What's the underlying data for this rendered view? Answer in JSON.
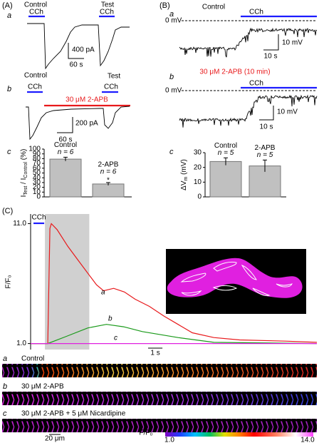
{
  "panels": {
    "A": {
      "label": "(A)",
      "a": {
        "label": "a",
        "control": "Control",
        "stim1": "CCh",
        "test": "Test",
        "stim2": "CCh",
        "scale_y": "400 pA",
        "scale_x": "60 s"
      },
      "b": {
        "label": "b",
        "control": "Control",
        "stim1": "CCh",
        "test": "Test",
        "stim2": "CCh",
        "drug": "30 μM 2-APB",
        "scale_y": "200 pA",
        "scale_x": "60 s"
      },
      "c": {
        "label": "c"
      }
    },
    "B": {
      "label": "(B)",
      "a": {
        "label": "a",
        "title": "Control",
        "stim": "CCh",
        "zero": "0 mV",
        "scale_y": "10 mV",
        "scale_x": "10 s"
      },
      "b": {
        "label": "b",
        "title": "30 μM 2-APB  (10 min)",
        "stim": "CCh",
        "zero": "0 mV",
        "scale_y": "10 mV",
        "scale_x": "10 s"
      },
      "c": {
        "label": "c"
      }
    },
    "C": {
      "label": "(C)",
      "strips": [
        {
          "label": "a",
          "text": "Control"
        },
        {
          "label": "b",
          "text": "30 μM 2-APB"
        },
        {
          "label": "c",
          "text": "30 μM 2-APB + 5 μM Nicardipine"
        }
      ],
      "scale": "20 μm",
      "colorbar": {
        "label": "F/F₀",
        "ticks": [
          {
            "value": 1,
            "label": "1.0"
          },
          {
            "value": 14,
            "label": "14.0"
          }
        ]
      }
    }
  },
  "chart_data": [
    {
      "type": "bar",
      "ylabel": [
        "I",
        "Test",
        " / I",
        "Control",
        " (%)"
      ],
      "categories": [
        "Control",
        "2-APB"
      ],
      "values": [
        79,
        27
      ],
      "errors": [
        4,
        3
      ],
      "n_labels": [
        "n = 6",
        "n = 6"
      ],
      "annotations": [
        null,
        "*"
      ],
      "color": "#c0c0c0",
      "ylim": [
        0,
        100
      ],
      "yticks": [
        0,
        10,
        20,
        30,
        40,
        50,
        60,
        70,
        80,
        90,
        100
      ]
    },
    {
      "type": "bar",
      "ylabel": [
        "ΔV",
        "m",
        "  (mV)"
      ],
      "categories": [
        "Control",
        "2-APB"
      ],
      "values": [
        24,
        21
      ],
      "errors": [
        2.5,
        4
      ],
      "n_labels": [
        "n = 5",
        "n = 5"
      ],
      "annotations": [
        null,
        null
      ],
      "color": "#c0c0c0",
      "ylim": [
        0,
        30
      ],
      "yticks": [
        0,
        10,
        20,
        30
      ]
    },
    {
      "type": "line",
      "ylabel": "F/F₀",
      "xlim": [
        -1,
        19
      ],
      "ylim": [
        0.5,
        11.8
      ],
      "yticks": [
        {
          "value": 1,
          "label": "1.0"
        },
        {
          "value": 11,
          "label": "11.0"
        }
      ],
      "stimulus": {
        "label": "CCh",
        "range": [
          -0.8,
          -0.05
        ]
      },
      "highlight": [
        0,
        3.1
      ],
      "scalebar": {
        "label": "1 s",
        "length": 1
      },
      "series": [
        {
          "name": "a",
          "color": "#e8191b",
          "x": [
            -1,
            0,
            0.2,
            0.35,
            0.45,
            0.85,
            1.6,
            2.35,
            3.1,
            3.6,
            4.1,
            4.8,
            5.55,
            6.3,
            7.3,
            8.3,
            9.3,
            10.3,
            11.8,
            13.6,
            16.8,
            19
          ],
          "values": [
            1.0,
            1.0,
            1.0,
            10.6,
            11.0,
            10.5,
            9.1,
            7.9,
            6.7,
            5.9,
            5.4,
            5.6,
            5.3,
            4.7,
            4.1,
            3.3,
            2.6,
            1.9,
            1.5,
            1.3,
            1.2,
            1.1
          ]
        },
        {
          "name": "b",
          "color": "#1a9a1a",
          "x": [
            -1,
            0.2,
            1.5,
            3,
            4.3,
            5.5,
            6.8,
            9.3,
            11.8,
            19
          ],
          "values": [
            1.0,
            1.0,
            1.6,
            2.3,
            2.6,
            2.4,
            2.0,
            1.5,
            1.1,
            1.0
          ]
        },
        {
          "name": "c",
          "color": "#e020e0",
          "x": [
            -1,
            19
          ],
          "values": [
            1.0,
            1.0
          ]
        }
      ]
    }
  ]
}
